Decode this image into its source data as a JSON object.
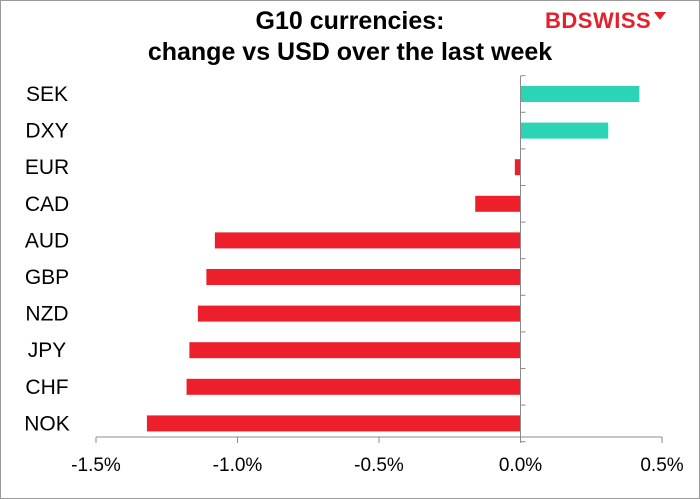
{
  "header": {
    "title_line1": "G10 currencies:",
    "title_line2": "change vs USD over the last week",
    "logo_text_a": "BD",
    "logo_text_b": "SWISS"
  },
  "chart_data": {
    "type": "bar",
    "orientation": "horizontal",
    "title": "G10 currencies: change vs USD over the last week",
    "categories": [
      "SEK",
      "DXY",
      "EUR",
      "CAD",
      "AUD",
      "GBP",
      "NZD",
      "JPY",
      "CHF",
      "NOK"
    ],
    "values": [
      0.42,
      0.31,
      -0.02,
      -0.16,
      -1.08,
      -1.11,
      -1.14,
      -1.17,
      -1.18,
      -1.32
    ],
    "xlim": [
      -1.5,
      0.5
    ],
    "xticks": [
      -1.5,
      -1.0,
      -0.5,
      0.0,
      0.5
    ],
    "xtick_labels": [
      "-1.5%",
      "-1.0%",
      "-0.5%",
      "0.0%",
      "0.5%"
    ],
    "xlabel": "",
    "ylabel": "",
    "grid": false,
    "colors": {
      "positive": "#2ad4b4",
      "negative": "#ed1f2b",
      "axis": "#8c8c8c"
    }
  }
}
